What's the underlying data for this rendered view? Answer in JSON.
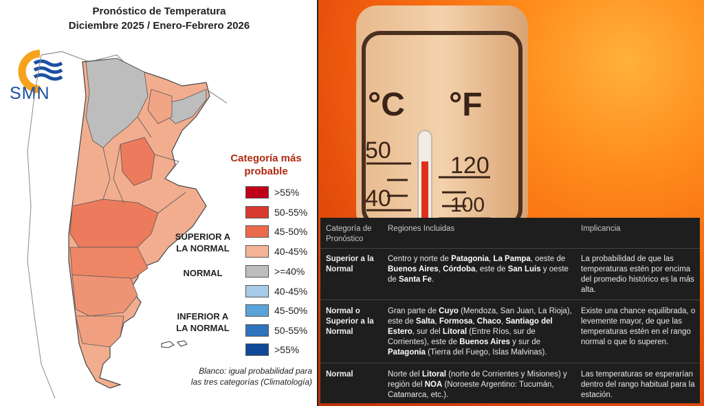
{
  "map": {
    "title_line1": "Pronóstico de Temperatura",
    "title_line2": "Diciembre 2025 / Enero-Febrero 2026",
    "logo_text": "SMN",
    "legend_title_line1": "Categoría más",
    "legend_title_line2": "probable",
    "legend": [
      {
        "label": ">55%",
        "color": "#c00018"
      },
      {
        "label": "50-55%",
        "color": "#d93a30"
      },
      {
        "label": "45-50%",
        "color": "#ec6a4c"
      },
      {
        "label": "40-45%",
        "color": "#f4b596"
      },
      {
        "label": ">=40%",
        "color": "#bdbdbd"
      },
      {
        "label": "40-45%",
        "color": "#a7cbe8"
      },
      {
        "label": "45-50%",
        "color": "#5aa3d8"
      },
      {
        "label": "50-55%",
        "color": "#2f73bc"
      },
      {
        "label": ">55%",
        "color": "#0f4a98"
      }
    ],
    "group_superior_line1": "SUPERIOR A",
    "group_superior_line2": "LA NORMAL",
    "group_normal": "NORMAL",
    "group_inferior_line1": "INFERIOR A",
    "group_inferior_line2": "LA NORMAL",
    "note_line1": "Blanco: igual probabilidad para",
    "note_line2": "las tres categorías (Climatología)"
  },
  "thermometer": {
    "c_label": "°C",
    "f_label": "°F",
    "c50": "50",
    "c40": "40",
    "f120": "120",
    "f100": "100"
  },
  "table": {
    "headers": {
      "col1_line1": "Categoría de",
      "col1_line2": "Pronóstico",
      "col2": "Regiones Incluidas",
      "col3": "Implicancia"
    },
    "row1": {
      "cat_line1": "Superior a la",
      "cat_line2": "Normal",
      "r1a": "Centro y norte de ",
      "r1b": "Patagonia",
      "r1c": ", ",
      "r1d": "La Pampa",
      "r1e": ", oeste de",
      "r2a": "Buenos Aires",
      "r2b": ", ",
      "r2c": "Córdoba",
      "r2d": ", este de ",
      "r2e": "San Luis",
      "r2f": " y oeste",
      "r3a": "de ",
      "r3b": "Santa Fe",
      "r3c": ".",
      "imp_line1": "La probabilidad de que las",
      "imp_line2": "temperaturas estén por encima",
      "imp_line3": "del promedio histórico es la más",
      "imp_line4": "alta."
    },
    "row2": {
      "cat_line1": "Normal o",
      "cat_line2": "Superior a la",
      "cat_line3": "Normal",
      "r1a": "Gran parte de ",
      "r1b": "Cuyo",
      "r1c": " (Mendoza, San Juan, La Rioja),",
      "r2a": "este de ",
      "r2b": "Salta",
      "r2c": ", ",
      "r2d": "Formosa",
      "r2e": ", ",
      "r2f": "Chaco",
      "r2g": ", ",
      "r2h": "Santiago del",
      "r3a": "Estero",
      "r3b": ", sur del ",
      "r3c": "Litoral",
      "r3d": " (Entre Ríos, sur de",
      "r4a": "Corrientes), este de ",
      "r4b": "Buenos Aires",
      "r4c": " y sur de",
      "r5a": "Patagonia",
      "r5b": " (Tierra del Fuego, Islas Malvinas).",
      "imp_line1": "Existe una chance equilibrada, o",
      "imp_line2": "levemente mayor, de que las",
      "imp_line3": "temperaturas estén en el rango",
      "imp_line4": "normal o que lo superen."
    },
    "row3": {
      "cat": "Normal",
      "r1a": "Norte del ",
      "r1b": "Litoral",
      "r1c": " (norte de Corrientes y Misiones) y",
      "r2a": "región del ",
      "r2b": "NOA",
      "r2c": " (Noroeste Argentino: Tucumán,",
      "r3a": "Catamarca, etc.).",
      "imp_line1": "Las temperaturas se esperarían",
      "imp_line2": "dentro del rango habitual para la",
      "imp_line3": "estación."
    }
  }
}
